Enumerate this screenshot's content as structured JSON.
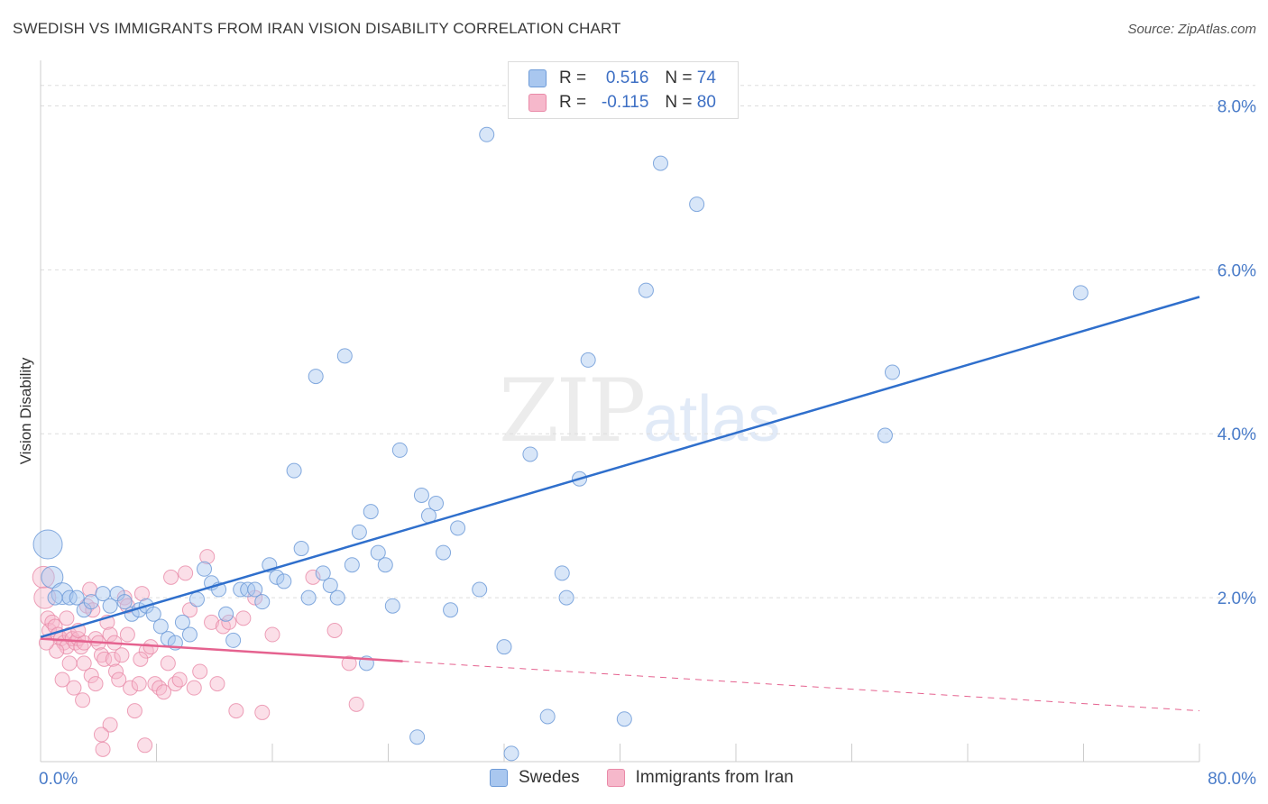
{
  "header": {
    "title": "SWEDISH VS IMMIGRANTS FROM IRAN VISION DISABILITY CORRELATION CHART",
    "source": "Source: ZipAtlas.com"
  },
  "watermark": {
    "zip": "ZIP",
    "atlas": "atlas"
  },
  "legend": {
    "rows": [
      {
        "r_label": "R =",
        "r_value": "0.516",
        "n_label": "N =",
        "n_value": "74"
      },
      {
        "r_label": "R =",
        "r_value": "-0.115",
        "n_label": "N =",
        "n_value": "80"
      }
    ]
  },
  "bottom_legend": {
    "swedes": "Swedes",
    "iran": "Immigrants from Iran"
  },
  "colors": {
    "swedes_fill": "#a9c7ef",
    "swedes_stroke": "#6e9bd8",
    "swedes_line": "#2f6fcc",
    "iran_fill": "#f6b8cb",
    "iran_stroke": "#e98aa8",
    "iran_line": "#e5628f",
    "tick": "#4a7cc9",
    "grid": "#dddddd"
  },
  "chart_data": {
    "type": "scatter",
    "title": "SWEDISH VS IMMIGRANTS FROM IRAN VISION DISABILITY CORRELATION CHART",
    "xlabel": "",
    "ylabel": "Vision Disability",
    "xlim": [
      0,
      80
    ],
    "ylim": [
      0,
      8.5
    ],
    "x_tick_labels": [
      "0.0%",
      "80.0%"
    ],
    "y_ticks": [
      2,
      4,
      6,
      8
    ],
    "y_tick_labels": [
      "2.0%",
      "4.0%",
      "6.0%",
      "8.0%"
    ],
    "grid": "horizontal dashed",
    "series": [
      {
        "name": "Swedes",
        "r": 0.516,
        "n": 74,
        "trend": {
          "x": [
            0,
            80
          ],
          "y": [
            1.52,
            5.67
          ]
        },
        "points": [
          {
            "x": 0.5,
            "y": 2.65,
            "s": 3
          },
          {
            "x": 0.8,
            "y": 2.25,
            "s": 2
          },
          {
            "x": 1.5,
            "y": 2.05,
            "s": 2
          },
          {
            "x": 2.0,
            "y": 2.0,
            "s": 1
          },
          {
            "x": 2.5,
            "y": 2.0,
            "s": 1
          },
          {
            "x": 3.0,
            "y": 1.85,
            "s": 1
          },
          {
            "x": 3.5,
            "y": 1.95,
            "s": 1
          },
          {
            "x": 4.3,
            "y": 2.05,
            "s": 1
          },
          {
            "x": 4.8,
            "y": 1.9,
            "s": 1
          },
          {
            "x": 5.3,
            "y": 2.05,
            "s": 1
          },
          {
            "x": 5.8,
            "y": 1.95,
            "s": 1
          },
          {
            "x": 6.3,
            "y": 1.8,
            "s": 1
          },
          {
            "x": 6.8,
            "y": 1.85,
            "s": 1
          },
          {
            "x": 7.3,
            "y": 1.9,
            "s": 1
          },
          {
            "x": 7.8,
            "y": 1.8,
            "s": 1
          },
          {
            "x": 8.3,
            "y": 1.65,
            "s": 1
          },
          {
            "x": 8.8,
            "y": 1.5,
            "s": 1
          },
          {
            "x": 9.3,
            "y": 1.45,
            "s": 1
          },
          {
            "x": 9.8,
            "y": 1.7,
            "s": 1
          },
          {
            "x": 10.3,
            "y": 1.55,
            "s": 1
          },
          {
            "x": 10.8,
            "y": 1.98,
            "s": 1
          },
          {
            "x": 11.3,
            "y": 2.35,
            "s": 1
          },
          {
            "x": 11.8,
            "y": 2.18,
            "s": 1
          },
          {
            "x": 12.3,
            "y": 2.1,
            "s": 1
          },
          {
            "x": 12.8,
            "y": 1.8,
            "s": 1
          },
          {
            "x": 13.3,
            "y": 1.48,
            "s": 1
          },
          {
            "x": 13.8,
            "y": 2.1,
            "s": 1
          },
          {
            "x": 14.3,
            "y": 2.1,
            "s": 1
          },
          {
            "x": 14.8,
            "y": 2.1,
            "s": 1
          },
          {
            "x": 15.3,
            "y": 1.95,
            "s": 1
          },
          {
            "x": 15.8,
            "y": 2.4,
            "s": 1
          },
          {
            "x": 16.3,
            "y": 2.25,
            "s": 1
          },
          {
            "x": 16.8,
            "y": 2.2,
            "s": 1
          },
          {
            "x": 17.5,
            "y": 3.55,
            "s": 1
          },
          {
            "x": 18.0,
            "y": 2.6,
            "s": 1
          },
          {
            "x": 18.5,
            "y": 2.0,
            "s": 1
          },
          {
            "x": 19.0,
            "y": 4.7,
            "s": 1
          },
          {
            "x": 19.5,
            "y": 2.3,
            "s": 1
          },
          {
            "x": 20.0,
            "y": 2.15,
            "s": 1
          },
          {
            "x": 20.5,
            "y": 2.0,
            "s": 1
          },
          {
            "x": 21.0,
            "y": 4.95,
            "s": 1
          },
          {
            "x": 21.5,
            "y": 2.4,
            "s": 1
          },
          {
            "x": 22.0,
            "y": 2.8,
            "s": 1
          },
          {
            "x": 22.5,
            "y": 1.2,
            "s": 1
          },
          {
            "x": 22.8,
            "y": 3.05,
            "s": 1
          },
          {
            "x": 23.3,
            "y": 2.55,
            "s": 1
          },
          {
            "x": 23.8,
            "y": 2.4,
            "s": 1
          },
          {
            "x": 24.3,
            "y": 1.9,
            "s": 1
          },
          {
            "x": 24.8,
            "y": 3.8,
            "s": 1
          },
          {
            "x": 26.0,
            "y": 0.3,
            "s": 1
          },
          {
            "x": 26.3,
            "y": 3.25,
            "s": 1
          },
          {
            "x": 26.8,
            "y": 3.0,
            "s": 1
          },
          {
            "x": 27.3,
            "y": 3.15,
            "s": 1
          },
          {
            "x": 27.8,
            "y": 2.55,
            "s": 1
          },
          {
            "x": 28.3,
            "y": 1.85,
            "s": 1
          },
          {
            "x": 28.8,
            "y": 2.85,
            "s": 1
          },
          {
            "x": 30.3,
            "y": 2.1,
            "s": 1
          },
          {
            "x": 30.8,
            "y": 7.65,
            "s": 1
          },
          {
            "x": 32.0,
            "y": 1.4,
            "s": 1
          },
          {
            "x": 32.5,
            "y": 0.1,
            "s": 1
          },
          {
            "x": 33.8,
            "y": 3.75,
            "s": 1
          },
          {
            "x": 35.0,
            "y": 0.55,
            "s": 1
          },
          {
            "x": 36.0,
            "y": 2.3,
            "s": 1
          },
          {
            "x": 36.3,
            "y": 2.0,
            "s": 1
          },
          {
            "x": 37.2,
            "y": 3.45,
            "s": 1
          },
          {
            "x": 37.8,
            "y": 4.9,
            "s": 1
          },
          {
            "x": 40.3,
            "y": 0.52,
            "s": 1
          },
          {
            "x": 41.8,
            "y": 5.75,
            "s": 1
          },
          {
            "x": 42.8,
            "y": 7.3,
            "s": 1
          },
          {
            "x": 45.3,
            "y": 6.8,
            "s": 1
          },
          {
            "x": 58.3,
            "y": 3.98,
            "s": 1
          },
          {
            "x": 58.8,
            "y": 4.75,
            "s": 1
          },
          {
            "x": 71.8,
            "y": 5.72,
            "s": 1
          },
          {
            "x": 1.0,
            "y": 2.0,
            "s": 1
          }
        ]
      },
      {
        "name": "Immigrants from Iran",
        "r": -0.115,
        "n": 80,
        "trend": {
          "x": [
            0,
            80
          ],
          "y": [
            1.5,
            0.62
          ]
        },
        "trend_solid_until_x": 25,
        "points": [
          {
            "x": 0.2,
            "y": 2.25,
            "s": 2
          },
          {
            "x": 0.3,
            "y": 2.0,
            "s": 2
          },
          {
            "x": 0.5,
            "y": 1.75,
            "s": 1
          },
          {
            "x": 0.6,
            "y": 1.6,
            "s": 1
          },
          {
            "x": 0.8,
            "y": 1.7,
            "s": 1
          },
          {
            "x": 1.0,
            "y": 1.65,
            "s": 1
          },
          {
            "x": 1.2,
            "y": 1.55,
            "s": 1
          },
          {
            "x": 1.4,
            "y": 1.5,
            "s": 1
          },
          {
            "x": 1.6,
            "y": 1.45,
            "s": 1
          },
          {
            "x": 1.8,
            "y": 1.4,
            "s": 1
          },
          {
            "x": 2.0,
            "y": 1.55,
            "s": 1
          },
          {
            "x": 2.2,
            "y": 1.5,
            "s": 1
          },
          {
            "x": 2.4,
            "y": 1.45,
            "s": 1
          },
          {
            "x": 2.6,
            "y": 1.5,
            "s": 1
          },
          {
            "x": 2.8,
            "y": 1.4,
            "s": 1
          },
          {
            "x": 3.0,
            "y": 1.45,
            "s": 1
          },
          {
            "x": 3.2,
            "y": 1.9,
            "s": 1
          },
          {
            "x": 3.4,
            "y": 2.1,
            "s": 1
          },
          {
            "x": 3.6,
            "y": 1.85,
            "s": 1
          },
          {
            "x": 3.8,
            "y": 1.5,
            "s": 1
          },
          {
            "x": 4.0,
            "y": 1.45,
            "s": 1
          },
          {
            "x": 4.2,
            "y": 1.3,
            "s": 1
          },
          {
            "x": 4.4,
            "y": 1.25,
            "s": 1
          },
          {
            "x": 4.6,
            "y": 1.7,
            "s": 1
          },
          {
            "x": 4.8,
            "y": 1.55,
            "s": 1
          },
          {
            "x": 5.0,
            "y": 1.25,
            "s": 1
          },
          {
            "x": 5.2,
            "y": 1.1,
            "s": 1
          },
          {
            "x": 5.4,
            "y": 1.0,
            "s": 1
          },
          {
            "x": 5.6,
            "y": 1.3,
            "s": 1
          },
          {
            "x": 5.8,
            "y": 2.0,
            "s": 1
          },
          {
            "x": 6.0,
            "y": 1.9,
            "s": 1
          },
          {
            "x": 6.2,
            "y": 0.9,
            "s": 1
          },
          {
            "x": 6.5,
            "y": 0.62,
            "s": 1
          },
          {
            "x": 6.8,
            "y": 0.95,
            "s": 1
          },
          {
            "x": 7.0,
            "y": 2.05,
            "s": 1
          },
          {
            "x": 7.3,
            "y": 1.35,
            "s": 1
          },
          {
            "x": 7.6,
            "y": 1.4,
            "s": 1
          },
          {
            "x": 7.9,
            "y": 0.95,
            "s": 1
          },
          {
            "x": 8.2,
            "y": 0.9,
            "s": 1
          },
          {
            "x": 8.5,
            "y": 0.85,
            "s": 1
          },
          {
            "x": 9.0,
            "y": 2.25,
            "s": 1
          },
          {
            "x": 9.3,
            "y": 0.95,
            "s": 1
          },
          {
            "x": 9.6,
            "y": 1.0,
            "s": 1
          },
          {
            "x": 10.0,
            "y": 2.3,
            "s": 1
          },
          {
            "x": 10.3,
            "y": 1.85,
            "s": 1
          },
          {
            "x": 10.6,
            "y": 0.9,
            "s": 1
          },
          {
            "x": 11.0,
            "y": 1.1,
            "s": 1
          },
          {
            "x": 11.5,
            "y": 2.5,
            "s": 1
          },
          {
            "x": 11.8,
            "y": 1.7,
            "s": 1
          },
          {
            "x": 12.2,
            "y": 0.95,
            "s": 1
          },
          {
            "x": 12.6,
            "y": 1.65,
            "s": 1
          },
          {
            "x": 13.0,
            "y": 1.7,
            "s": 1
          },
          {
            "x": 13.5,
            "y": 0.62,
            "s": 1
          },
          {
            "x": 14.0,
            "y": 1.75,
            "s": 1
          },
          {
            "x": 14.8,
            "y": 2.0,
            "s": 1
          },
          {
            "x": 15.3,
            "y": 0.6,
            "s": 1
          },
          {
            "x": 16.0,
            "y": 1.55,
            "s": 1
          },
          {
            "x": 18.8,
            "y": 2.25,
            "s": 1
          },
          {
            "x": 20.3,
            "y": 1.6,
            "s": 1
          },
          {
            "x": 21.3,
            "y": 1.2,
            "s": 1
          },
          {
            "x": 21.8,
            "y": 0.7,
            "s": 1
          },
          {
            "x": 4.8,
            "y": 0.45,
            "s": 1
          },
          {
            "x": 4.2,
            "y": 0.33,
            "s": 1
          },
          {
            "x": 4.3,
            "y": 0.15,
            "s": 1
          },
          {
            "x": 7.2,
            "y": 0.2,
            "s": 1
          },
          {
            "x": 2.0,
            "y": 1.2,
            "s": 1
          },
          {
            "x": 2.3,
            "y": 0.9,
            "s": 1
          },
          {
            "x": 3.0,
            "y": 1.2,
            "s": 1
          },
          {
            "x": 3.5,
            "y": 1.05,
            "s": 1
          },
          {
            "x": 3.8,
            "y": 0.95,
            "s": 1
          },
          {
            "x": 1.8,
            "y": 1.75,
            "s": 1
          },
          {
            "x": 1.1,
            "y": 1.35,
            "s": 1
          },
          {
            "x": 2.6,
            "y": 1.6,
            "s": 1
          },
          {
            "x": 5.1,
            "y": 1.45,
            "s": 1
          },
          {
            "x": 6.9,
            "y": 1.25,
            "s": 1
          },
          {
            "x": 0.4,
            "y": 1.45,
            "s": 1
          },
          {
            "x": 1.5,
            "y": 1.0,
            "s": 1
          },
          {
            "x": 2.9,
            "y": 0.75,
            "s": 1
          },
          {
            "x": 6.0,
            "y": 1.55,
            "s": 1
          },
          {
            "x": 8.8,
            "y": 1.2,
            "s": 1
          }
        ]
      }
    ]
  }
}
